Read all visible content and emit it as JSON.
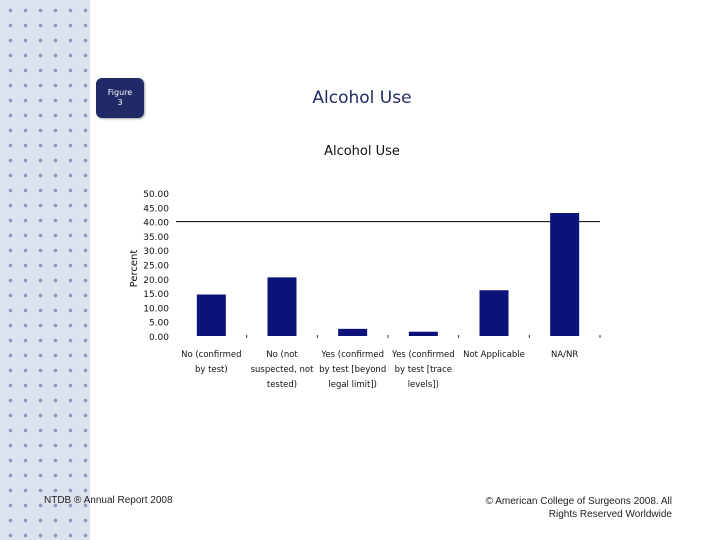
{
  "badge": {
    "line1": "Figure",
    "line2": "3"
  },
  "slide_title": "Alcohol Use",
  "footer": {
    "left": "NTDB ® Annual Report 2008",
    "right_line1": "© American College of Surgeons 2008.  All",
    "right_line2": "Rights Reserved Worldwide"
  },
  "colors": {
    "bar": "#0d1278",
    "badge": "#1f2a66"
  },
  "chart_data": {
    "type": "bar",
    "title": "Alcohol Use",
    "ylabel": "Percent",
    "xlabel": "",
    "ylim": [
      0,
      50
    ],
    "yticks": [
      "50.00",
      "45.00",
      "40.00",
      "35.00",
      "30.00",
      "25.00",
      "20.00",
      "15.00",
      "10.00",
      "5.00",
      "0.00"
    ],
    "reference_line": 40,
    "categories": [
      [
        "No (confirmed",
        "by test)"
      ],
      [
        "No (not",
        "suspected, not",
        "tested)"
      ],
      [
        "Yes (confirmed",
        "by test [beyond",
        "legal limit])"
      ],
      [
        "Yes (confirmed",
        "by test [trace",
        "levels])"
      ],
      [
        "Not Applicable"
      ],
      [
        "NA/NR"
      ]
    ],
    "values": [
      14.5,
      20.5,
      2.5,
      1.5,
      16.0,
      43.0
    ]
  }
}
